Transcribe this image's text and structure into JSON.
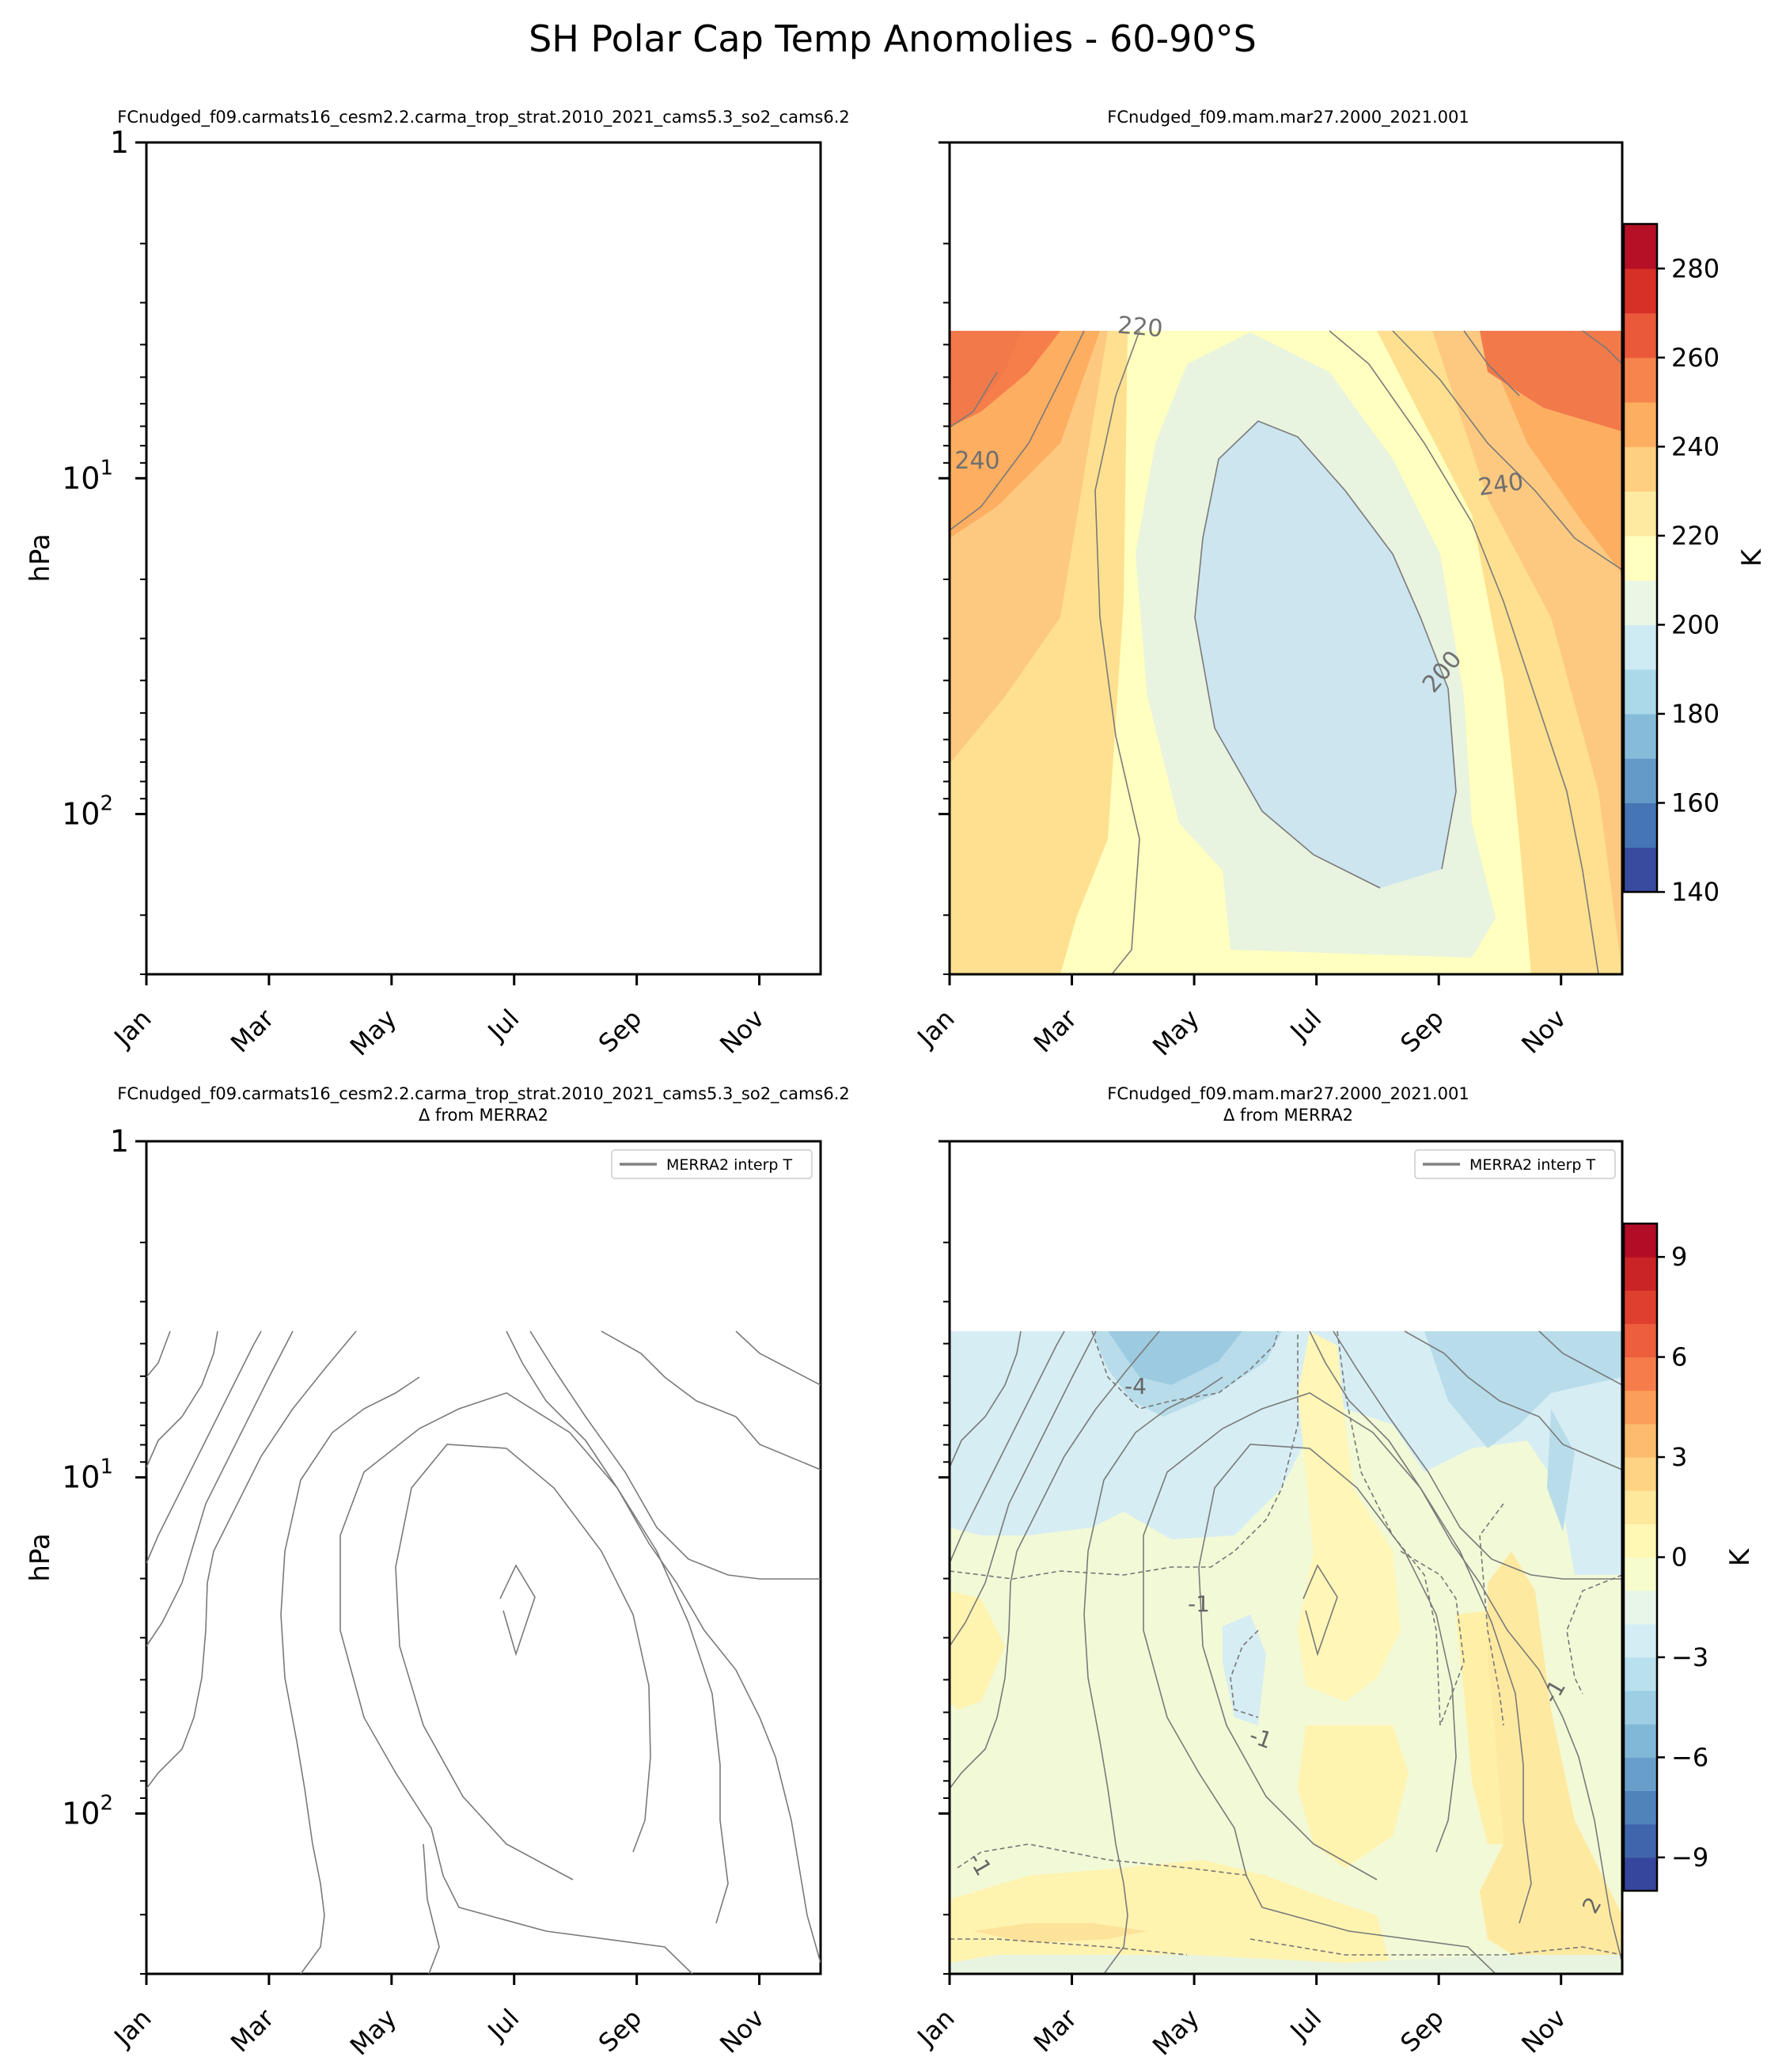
{
  "figure": {
    "suptitle": "SH Polar Cap Temp Anomolies - 60-90°S"
  },
  "chart_data": [
    {
      "type": "heatmap",
      "panel": "top-left",
      "title": "FCnudged_f09.carmats16_cesm2.2.carma_trop_strat.2010_2021_cams5.3_so2_cams6.2",
      "subtitle": "",
      "xlabel": "",
      "ylabel": "hPa",
      "x_ticks": [
        "Jan",
        "Mar",
        "May",
        "Jul",
        "Sep",
        "Nov"
      ],
      "y_ticks": [
        "10^0",
        "10^1",
        "10^2"
      ],
      "y_tick_labels": [
        {
          "base": "1",
          "exp": ""
        },
        {
          "base": "10",
          "exp": "1"
        },
        {
          "base": "10",
          "exp": "2"
        }
      ],
      "yscale": "log",
      "ylim": [
        300,
        1
      ],
      "filled": false,
      "contours": false
    },
    {
      "type": "heatmap",
      "panel": "top-right",
      "title": "FCnudged_f09.mam.mar27.2000_2021.001",
      "subtitle": "",
      "x_ticks": [
        "Jan",
        "Mar",
        "May",
        "Jul",
        "Sep",
        "Nov"
      ],
      "yscale": "log",
      "ylim": [
        300,
        1
      ],
      "data_top_hPa": 3.8,
      "contour_labels": [
        "220",
        "240",
        "240",
        "200"
      ],
      "colorbar": {
        "label": "K",
        "min": 140,
        "max": 290,
        "step": 10,
        "ticks": [
          "140",
          "160",
          "180",
          "200",
          "220",
          "240",
          "260",
          "280"
        ],
        "colormap": "RdYlBu_r"
      }
    },
    {
      "type": "heatmap",
      "panel": "bottom-left",
      "title": "FCnudged_f09.carmats16_cesm2.2.carma_trop_strat.2010_2021_cams5.3_so2_cams6.2",
      "subtitle": "Δ from MERRA2",
      "ylabel": "hPa",
      "x_ticks": [
        "Jan",
        "Mar",
        "May",
        "Jul",
        "Sep",
        "Nov"
      ],
      "y_tick_labels": [
        {
          "base": "1",
          "exp": ""
        },
        {
          "base": "10",
          "exp": "1"
        },
        {
          "base": "10",
          "exp": "2"
        }
      ],
      "yscale": "log",
      "ylim": [
        300,
        1
      ],
      "legend": {
        "label": "MERRA2 interp T",
        "placement": "top-right"
      }
    },
    {
      "type": "heatmap",
      "panel": "bottom-right",
      "title": "FCnudged_f09.mam.mar27.2000_2021.001",
      "subtitle": "Δ from MERRA2",
      "x_ticks": [
        "Jan",
        "Mar",
        "May",
        "Jul",
        "Sep",
        "Nov"
      ],
      "yscale": "log",
      "ylim": [
        300,
        1
      ],
      "legend": {
        "label": "MERRA2 interp T",
        "placement": "top-right"
      },
      "contour_labels": [
        "-4",
        "-1",
        "-1",
        "-1",
        "-1",
        "2"
      ],
      "colorbar": {
        "label": "K",
        "min": -10,
        "max": 10,
        "step": 1,
        "ticks": [
          "−9",
          "−6",
          "−3",
          "0",
          "3",
          "6",
          "9"
        ],
        "colormap": "RdYlBu_r"
      }
    }
  ],
  "colors": {
    "cmap": [
      "#313695",
      "#4575b4",
      "#74add1",
      "#abd9e9",
      "#e0f3f8",
      "#ffffbf",
      "#fee090",
      "#fdae61",
      "#f46d43",
      "#d73027",
      "#a50026"
    ],
    "contour": "#808080",
    "text": "#000000"
  }
}
